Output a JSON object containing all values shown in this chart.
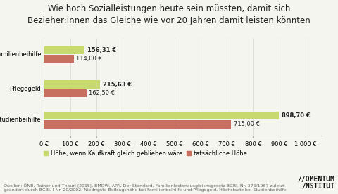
{
  "title_line1": "Wie hoch Sozialleistungen heute sein müssten, damit sich",
  "title_line2": "Bezieher:innen das Gleiche wie vor 20 Jahren damit leisten könnten",
  "categories": [
    "Familienbeihilfe",
    "Pflegegeld",
    "Studienbeihilfe"
  ],
  "kaufkraft_values": [
    156.31,
    215.63,
    898.7
  ],
  "tatsaechlich_values": [
    114.0,
    162.5,
    715.0
  ],
  "kaufkraft_labels": [
    "156,31 €",
    "215,63 €",
    "898,70 €"
  ],
  "tatsaechlich_labels": [
    "114,00 €",
    "162,50 €",
    "715,00 €"
  ],
  "color_kaufkraft": "#c8d96f",
  "color_tatsaechlich": "#c87060",
  "legend_kaufkraft": "Höhe, wenn Kaufkraft gleich geblieben wäre",
  "legend_tatsaechlich": "tatsächliche Höhe",
  "xlabel_ticks": [
    0,
    100,
    200,
    300,
    400,
    500,
    600,
    700,
    800,
    900,
    1000
  ],
  "xlabel_labels": [
    "0 €",
    "100 €",
    "200 €",
    "300 €",
    "400 €",
    "500 €",
    "600 €",
    "700 €",
    "800 €",
    "900 €",
    "1.000 €"
  ],
  "xlim": [
    0,
    1060
  ],
  "source_text": "Quellen: ÖNB, Rainer und Thaurl (2015), BMDW, APA, Der Standard, Familienlastenausgleichsgesetz BGBl. Nr. 376/1967 zuletzt\ngeändert durch BGBl. I Nr. 20/2002, Niedrigste Beitragshöhe bei Familienbeihilfe und Pflegegeld, Höchstsatz bei Studienbeihilfe",
  "bg_color": "#f5f5f0",
  "title_fontsize": 8.5,
  "label_fontsize": 6.0,
  "tick_fontsize": 6.0,
  "source_fontsize": 4.5,
  "logo_fontsize": 7.0,
  "bar_height": 0.28
}
